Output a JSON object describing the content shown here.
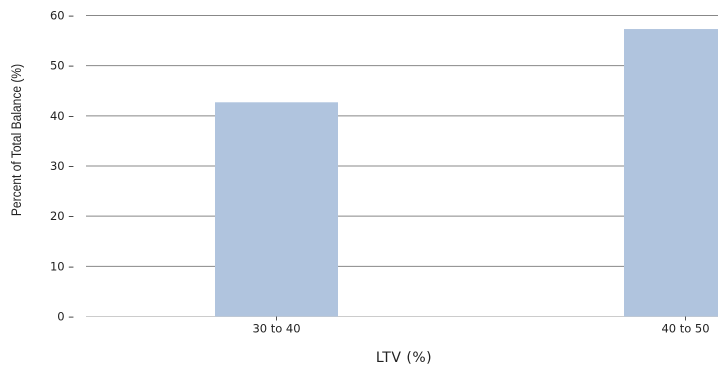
{
  "chart_data": {
    "type": "bar",
    "categories": [
      "30 to 40",
      "40 to 50"
    ],
    "values": [
      42.7,
      57.3
    ],
    "title": "",
    "xlabel": "LTV (%)",
    "ylabel": "Percent of Total Balance (%)",
    "ylim": [
      0,
      60
    ],
    "yticks": [
      0,
      10,
      20,
      30,
      40,
      50,
      60
    ],
    "grid": "horizontal",
    "legend": "none",
    "bar_color": "#b0c4de",
    "grid_color": "#888888"
  }
}
